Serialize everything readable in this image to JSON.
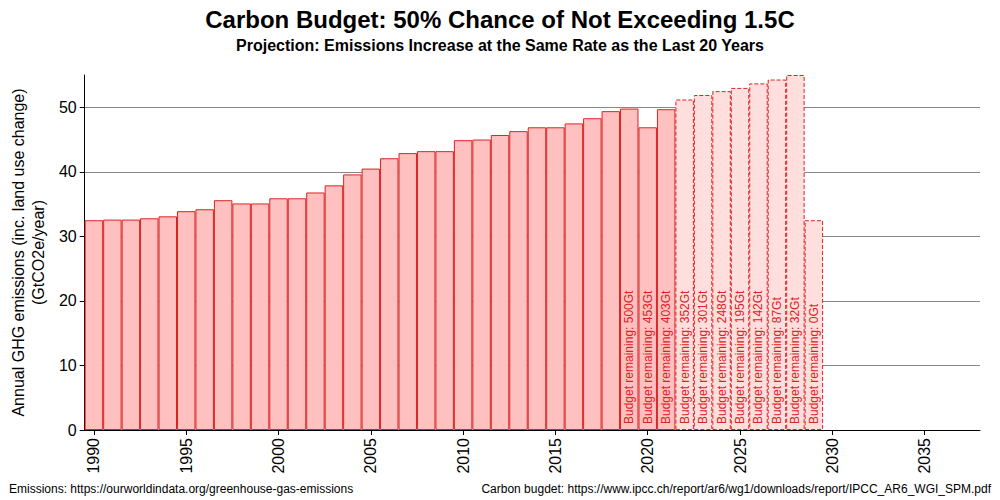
{
  "chart_data": {
    "type": "bar",
    "title": "Carbon Budget: 50% Chance of Not Exceeding 1.5C",
    "subtitle": "Projection: Emissions Increase at the Same Rate as the Last 20 Years",
    "ylabel": "Annual GHG emissions (inc. land use change)\n(GtCO2e/year)",
    "footnotes": [
      "Emissions: https://ourworldindata.org/greenhouse-gas-emissions",
      "Carbon bugdet: https://www.ipcc.ch/report/ar6/wg1/downloads/report/IPCC_AR6_WGI_SPM.pdf"
    ],
    "series": [
      {
        "x": [
          1990,
          1991,
          1992,
          1993,
          1994,
          1995,
          1996,
          1997,
          1998,
          1999,
          2000,
          2001,
          2002,
          2003,
          2004,
          2005,
          2006,
          2007,
          2008,
          2009,
          2010,
          2011,
          2012,
          2013,
          2014,
          2015,
          2016,
          2017,
          2018,
          2019,
          2020,
          2021
        ],
        "values": [
          32.5,
          32.6,
          32.6,
          32.8,
          33.1,
          33.9,
          34.2,
          35.6,
          35.1,
          35.1,
          35.9,
          35.9,
          36.8,
          37.9,
          39.6,
          40.5,
          42.1,
          42.9,
          43.2,
          43.2,
          44.9,
          45.0,
          45.7,
          46.3,
          46.9,
          46.9,
          47.5,
          48.3,
          49.4,
          49.8,
          46.9,
          49.7
        ],
        "color": "#ffc0c0",
        "line_style": "solid"
      },
      {
        "x": [
          2022,
          2023,
          2024,
          2025,
          2026,
          2027,
          2028,
          2029
        ],
        "values": [
          51.2,
          51.9,
          52.5,
          53.0,
          53.7,
          54.3,
          55.0,
          32.5
        ],
        "color": "#ffdede",
        "line_style": "dashed"
      }
    ],
    "annotations": [
      {
        "x": 2019,
        "text": "Budget remaining: 500Gt"
      },
      {
        "x": 2020,
        "text": "Budget remaining: 453Gt"
      },
      {
        "x": 2021,
        "text": "Budget remaining: 403Gt"
      },
      {
        "x": 2022,
        "text": "Budget remaining: 352Gt"
      },
      {
        "x": 2023,
        "text": "Budget remaining: 301Gt"
      },
      {
        "x": 2024,
        "text": "Budget remaining: 248Gt"
      },
      {
        "x": 2025,
        "text": "Budget remaining: 195Gt"
      },
      {
        "x": 2026,
        "text": "Budget remaining: 142Gt"
      },
      {
        "x": 2027,
        "text": "Budget remaining: 87Gt"
      },
      {
        "x": 2028,
        "text": "Budget remaining: 32Gt"
      },
      {
        "x": 2029,
        "text": "Budget remaining: 0Gt"
      }
    ],
    "xlim": [
      1989.5,
      2038
    ],
    "xticks": [
      1990,
      1995,
      2000,
      2005,
      2010,
      2015,
      2020,
      2025,
      2030,
      2035
    ],
    "ylim": [
      0,
      55
    ],
    "yticks": [
      0,
      10,
      20,
      30,
      40,
      50
    ],
    "grid": true
  }
}
